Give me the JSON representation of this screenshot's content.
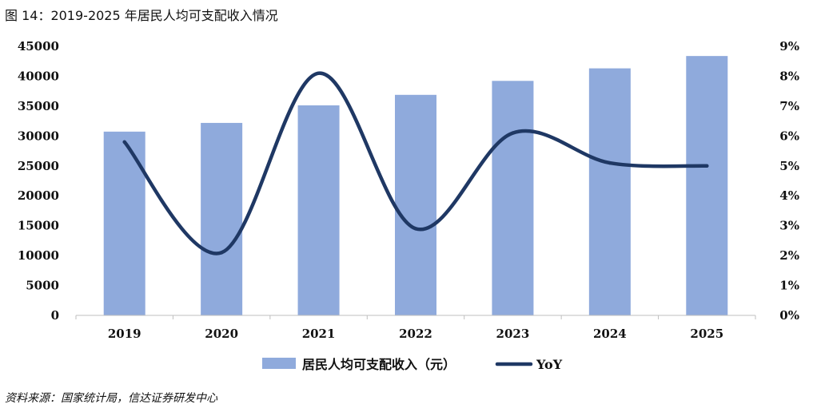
{
  "figure": {
    "title": "图 14：2019-2025 年居民人均可支配收入情况",
    "source": "资料来源：国家统计局，信达证券研发中心"
  },
  "chart_data": {
    "type": "bar+line",
    "title": "",
    "categories": [
      "2019",
      "2020",
      "2021",
      "2022",
      "2023",
      "2024",
      "2025"
    ],
    "series": [
      {
        "name": "居民人均可支配收入（元）",
        "type": "bar",
        "axis": "left",
        "color": "#8FAADC",
        "values": [
          30733,
          32189,
          35128,
          36883,
          39218,
          41314,
          43378
        ]
      },
      {
        "name": "YoY",
        "type": "line",
        "axis": "right",
        "color": "#1F3864",
        "values": [
          5.8,
          2.1,
          8.1,
          2.9,
          6.1,
          5.1,
          5.0
        ]
      }
    ],
    "y_left": {
      "min": 0,
      "max": 45000,
      "ticks": [
        "0",
        "5000",
        "10000",
        "15000",
        "20000",
        "25000",
        "30000",
        "35000",
        "40000",
        "45000"
      ]
    },
    "y_right": {
      "min": 0,
      "max": 9,
      "ticks": [
        "0%",
        "1%",
        "2%",
        "3%",
        "4%",
        "5%",
        "6%",
        "7%",
        "8%",
        "9%"
      ]
    },
    "grid": false,
    "legend": "bottom"
  }
}
